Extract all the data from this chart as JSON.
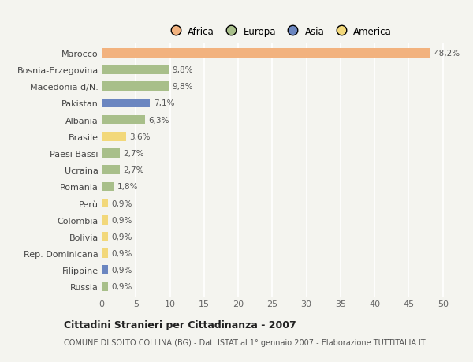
{
  "categories": [
    "Marocco",
    "Bosnia-Erzegovina",
    "Macedonia d/N.",
    "Pakistan",
    "Albania",
    "Brasile",
    "Paesi Bassi",
    "Ucraina",
    "Romania",
    "Perù",
    "Colombia",
    "Bolivia",
    "Rep. Dominicana",
    "Filippine",
    "Russia"
  ],
  "values": [
    48.2,
    9.8,
    9.8,
    7.1,
    6.3,
    3.6,
    2.7,
    2.7,
    1.8,
    0.9,
    0.9,
    0.9,
    0.9,
    0.9,
    0.9
  ],
  "bar_colors": [
    "#F2B27E",
    "#A8BF8A",
    "#A8BF8A",
    "#6B86C0",
    "#A8BF8A",
    "#F2D87A",
    "#A8BF8A",
    "#A8BF8A",
    "#A8BF8A",
    "#F2D87A",
    "#F2D87A",
    "#F2D87A",
    "#F2D87A",
    "#6B86C0",
    "#A8BF8A"
  ],
  "labels": [
    "48,2%",
    "9,8%",
    "9,8%",
    "7,1%",
    "6,3%",
    "3,6%",
    "2,7%",
    "2,7%",
    "1,8%",
    "0,9%",
    "0,9%",
    "0,9%",
    "0,9%",
    "0,9%",
    "0,9%"
  ],
  "xlim": [
    0,
    52
  ],
  "xticks": [
    0,
    5,
    10,
    15,
    20,
    25,
    30,
    35,
    40,
    45,
    50
  ],
  "title": "Cittadini Stranieri per Cittadinanza - 2007",
  "subtitle": "COMUNE DI SOLTO COLLINA (BG) - Dati ISTAT al 1° gennaio 2007 - Elaborazione TUTTITALIA.IT",
  "legend_labels": [
    "Africa",
    "Europa",
    "Asia",
    "America"
  ],
  "legend_colors": [
    "#F2B27E",
    "#A8BF8A",
    "#6B86C0",
    "#F2D87A"
  ],
  "background_color": "#f4f4ef",
  "grid_color": "#ffffff",
  "bar_height": 0.55
}
